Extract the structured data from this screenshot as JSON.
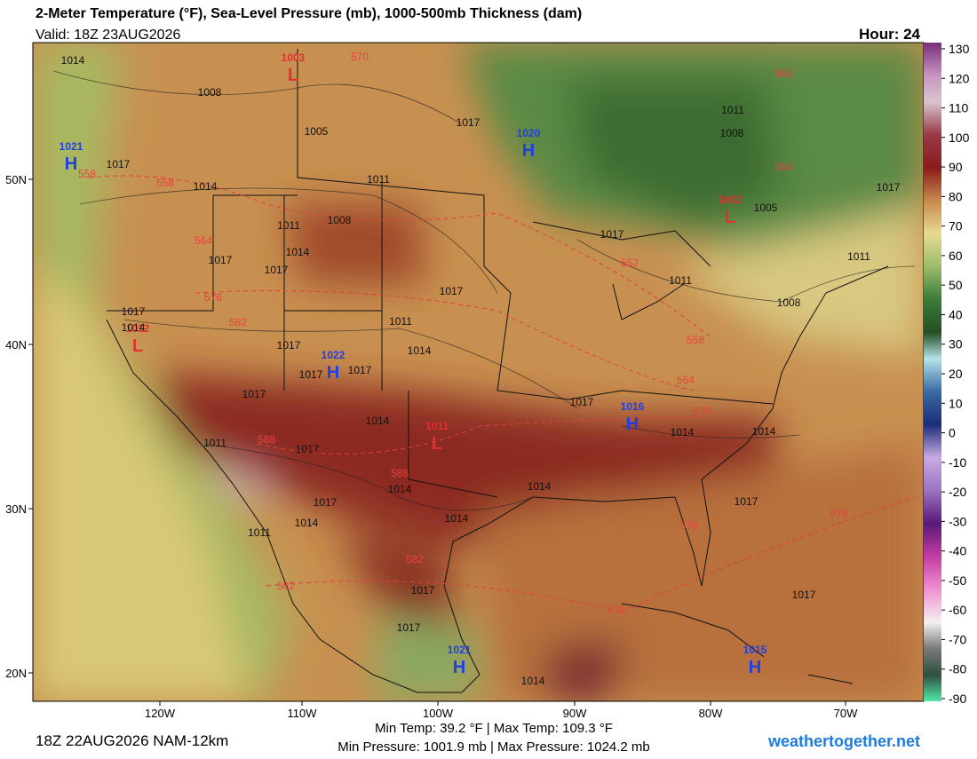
{
  "header": {
    "title": "2-Meter Temperature (°F), Sea-Level Pressure (mb), 1000-500mb Thickness (dam)",
    "valid": "Valid: 18Z 23AUG2026",
    "hour": "Hour: 24"
  },
  "colorbar": {
    "ticks": [
      130,
      120,
      110,
      100,
      90,
      80,
      70,
      60,
      50,
      40,
      30,
      20,
      10,
      0,
      -10,
      -20,
      -30,
      -40,
      -50,
      -60,
      -70,
      -80,
      -90
    ]
  },
  "axes": {
    "lon_labels": [
      "120W",
      "110W",
      "100W",
      "90W",
      "80W",
      " 70W"
    ],
    "lat_labels": [
      "50N",
      "40N",
      "30N",
      "20N"
    ]
  },
  "footer": {
    "run": "18Z 22AUG2026 NAM-12km",
    "temp_stats": "Min Temp:  39.2 °F | Max Temp: 109.3 °F",
    "pressure_stats": "Min Pressure: 1001.9 mb | Max Pressure: 1024.2 mb",
    "site": "weathertogether.net"
  },
  "centers": [
    {
      "kind": "H",
      "pressure": "1021"
    },
    {
      "kind": "L",
      "pressure": "1003"
    },
    {
      "kind": "H",
      "pressure": "1020"
    },
    {
      "kind": "L",
      "pressure": "1002"
    },
    {
      "kind": "L",
      "pressure": "1012"
    },
    {
      "kind": "H",
      "pressure": "1022"
    },
    {
      "kind": "H",
      "pressure": "1016"
    },
    {
      "kind": "L",
      "pressure": "1011"
    },
    {
      "kind": "H",
      "pressure": "1021"
    },
    {
      "kind": "H",
      "pressure": "1015"
    }
  ],
  "isobar_labels": [
    "1014",
    "1008",
    "1005",
    "1017",
    "1011",
    "1014",
    "1011",
    "1008",
    "1014",
    "1017",
    "1017",
    "1017",
    "1011",
    "1017",
    "1014",
    "1017",
    "1014",
    "1017",
    "1017",
    "1017",
    "1014",
    "1011",
    "1017",
    "1014",
    "1017",
    "1014",
    "1014",
    "1011",
    "1014",
    "1017",
    "1014",
    "1014",
    "1017",
    "1017",
    "1017",
    "1017",
    "1014",
    "1017",
    "1011",
    "1008",
    "1011",
    "1005",
    "1011",
    "1008",
    "1017",
    "1017"
  ],
  "thickness_labels": [
    "570",
    "558",
    "558",
    "564",
    "576",
    "582",
    "552",
    "558",
    "564",
    "570",
    "588",
    "588",
    "582",
    "576",
    "582",
    "576",
    "576",
    "558",
    "564"
  ]
}
